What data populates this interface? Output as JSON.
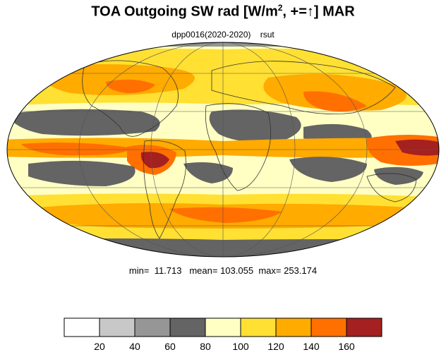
{
  "title_prefix": "TOA Outgoing SW rad [W/m",
  "title_sup": "2",
  "title_mid": ", +=",
  "title_arrow": "↑",
  "title_suffix": "] MAR",
  "subtitle_run": "dpp0016(2020-2020)",
  "subtitle_var": "rsut",
  "stats": {
    "min_label": "min=",
    "min": "11.713",
    "mean_label": "mean=",
    "mean": "103.055",
    "max_label": "max=",
    "max": "253.174"
  },
  "colorbar": {
    "colors": [
      "#ffffff",
      "#c8c8c8",
      "#969696",
      "#646464",
      "#ffffc4",
      "#ffe033",
      "#ffab00",
      "#ff7000",
      "#a52020"
    ],
    "ticks": [
      "20",
      "40",
      "60",
      "80",
      "100",
      "120",
      "140",
      "160"
    ]
  },
  "map": {
    "projection": "mollweide",
    "ocean_color": "#ffffc4",
    "land_outline_color": "#333333"
  }
}
